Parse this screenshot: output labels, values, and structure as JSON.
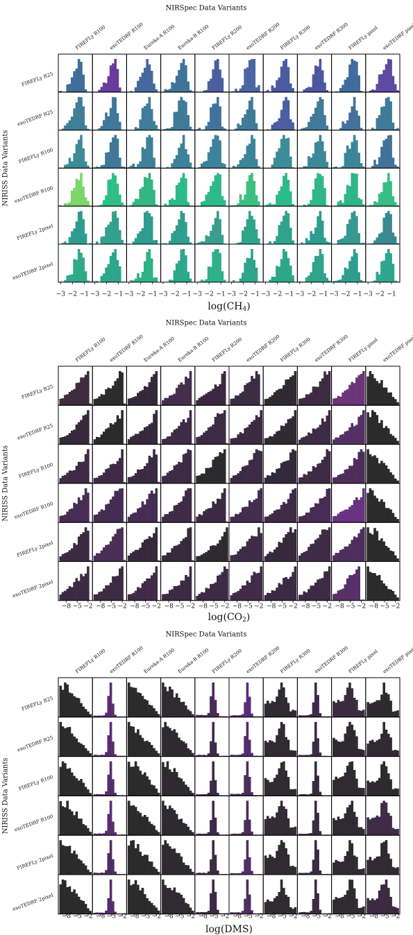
{
  "chart_data": [
    {
      "type": "histogram-grid",
      "title": "NIRSpec Data Variants",
      "ylabel": "NIRISS Data Variants",
      "xlabel_base": "log(CH",
      "xlabel_sub": "4",
      "xlabel_tail": ")",
      "columns": [
        "FIREFLy R100",
        "exoTEDRF R100",
        "Eureka-A R100",
        "Eureka-B R100",
        "FIREFLy R200",
        "exoTEDRF R200",
        "FIREFLy R300",
        "exoTEDRF R300",
        "FIREFLy pixel",
        "exoTEDRF pixel"
      ],
      "rows": [
        "FIREFLy R25",
        "exoTEDRF R25",
        "FIREFLy R100",
        "exoTEDRF R100",
        "FIREFLy 2pixel",
        "exoTEDRF 2pixel"
      ],
      "xlim": [
        -3.2,
        -0.3
      ],
      "xticks": [
        -3,
        -2,
        -1
      ],
      "xtick_labels": [
        "−3",
        "−2",
        "−1"
      ],
      "profile": "peaked",
      "param": {
        "peak": [
          -1.3,
          -1.05
        ],
        "left_width": [
          0.45,
          0.75
        ],
        "right_width": [
          0.18,
          0.32
        ]
      },
      "row_colors": [
        [
          "#3f6f98",
          "#6a3aa0",
          "#46689f",
          "#40739a",
          "#4a5fa0",
          "#4b66a2",
          "#4a5ba1",
          "#4d56a0",
          "#406b9d",
          "#5d4aa1"
        ],
        [
          "#3f7f98",
          "#3f7898",
          "#3f7d99",
          "#3f7a98",
          "#42729b",
          "#3f7b98",
          "#4a5ea0",
          "#3f7a98",
          "#43719b",
          "#3f7a99"
        ],
        [
          "#3c8c98",
          "#3f7898",
          "#3d8198",
          "#3d8298",
          "#3d8298",
          "#3c8598",
          "#3c8c98",
          "#3c8898",
          "#3c8598",
          "#42729a"
        ],
        [
          "#7ad76a",
          "#2dbf87",
          "#33b684",
          "#2dba89",
          "#2dba89",
          "#3cc080",
          "#2dba89",
          "#30b789",
          "#2eb58a",
          "#37bd86"
        ],
        [
          "#2f9d8e",
          "#35a08c",
          "#2f9c8f",
          "#2e9e8d",
          "#3a9c8d",
          "#2ea58b",
          "#2fa38c",
          "#2c9d8e",
          "#35998f",
          "#3a8990"
        ],
        [
          "#2ea98a",
          "#2da68a",
          "#2fb287",
          "#2ca88a",
          "#2fb088",
          "#2ea58b",
          "#2da68a",
          "#2ea489",
          "#2d9d8e",
          "#2fa68b"
        ]
      ]
    },
    {
      "type": "histogram-grid",
      "title": "NIRSpec Data Variants",
      "ylabel": "NIRISS Data Variants",
      "xlabel_base": "log(CO",
      "xlabel_sub": "2",
      "xlabel_tail": ")",
      "columns": [
        "FIREFLy R100",
        "exoTEDRF R100",
        "Eureka-A R100",
        "Eureka-B R100",
        "FIREFLy R200",
        "exoTEDRF R200",
        "FIREFLy R300",
        "exoTEDRF R300",
        "FIREFLy pixel",
        "exoTEDRF pixel"
      ],
      "rows": [
        "FIREFLy R25",
        "exoTEDRF R25",
        "FIREFLy R100",
        "exoTEDRF R100",
        "FIREFLy 2pixel",
        "exoTEDRF 2pixel"
      ],
      "xlim": [
        -10.2,
        -0.8
      ],
      "xticks": [
        -8,
        -5,
        -2
      ],
      "xtick_labels": [
        "−8",
        "−5",
        "−2"
      ],
      "profile": "ramp",
      "param": {
        "peak": [
          -3.2,
          -1.8
        ]
      },
      "column_profiles": {
        "9": "decay"
      },
      "row_colors": [
        [
          "#3d2b3e",
          "#2d2b2e",
          "#33293a",
          "#452d4c",
          "#3b2840",
          "#3a2c42",
          "#2e2a31",
          "#3c2b42",
          "#6b3479",
          "#2b2b2b"
        ],
        [
          "#35293a",
          "#2b2b2d",
          "#36293c",
          "#3e2b45",
          "#3c2b43",
          "#3c2a43",
          "#2f2a31",
          "#3e2b45",
          "#552f66",
          "#2b2b2b"
        ],
        [
          "#3d2a45",
          "#3f2b47",
          "#3a2b43",
          "#3c2b44",
          "#2b2a2d",
          "#3d2a45",
          "#33293a",
          "#3d2a45",
          "#4e2d5b",
          "#2b2b2b"
        ],
        [
          "#472c55",
          "#452c52",
          "#472c54",
          "#3e2b47",
          "#3a2a42",
          "#432c4e",
          "#3f2b47",
          "#472c55",
          "#6a3282",
          "#2b2b2b"
        ],
        [
          "#3b2a41",
          "#4a2e57",
          "#35293a",
          "#362a3b",
          "#2e2a31",
          "#3e2b45",
          "#35293a",
          "#3e2b45",
          "#4e2e5c",
          "#2b2b2b"
        ],
        [
          "#3b2a42",
          "#3d2b44",
          "#412b48",
          "#3d2b44",
          "#3d2b44",
          "#412b48",
          "#3a2b42",
          "#3d2b45",
          "#57306a",
          "#2b2b2b"
        ]
      ]
    },
    {
      "type": "histogram-grid",
      "title": "NIRSpec Data Variants",
      "ylabel": "NIRISS Data Variants",
      "xlabel_base": "log(DMS)",
      "xlabel_sub": "",
      "xlabel_tail": "",
      "columns": [
        "FIREFLy R100",
        "exoTEDRF R100",
        "Eureka-A R100",
        "Eureka-B R100",
        "FIREFLy R200",
        "exoTEDRF R200",
        "FIREFLy R300",
        "exoTEDRF R300",
        "FIREFLy pixel",
        "exoTEDRF pixel"
      ],
      "rows": [
        "FIREFLy R25",
        "exoTEDRF R25",
        "FIREFLy R100",
        "exoTEDRF R100",
        "FIREFLy 2pixel",
        "exoTEDRF 2pixel"
      ],
      "xlim": [
        -10.2,
        -0.8
      ],
      "xticks": [
        -8,
        -5,
        -2
      ],
      "xtick_labels": [
        "−8",
        "−5",
        "−2"
      ],
      "profile": "dms",
      "column_profiles": {
        "0": "decay",
        "1": "spike",
        "2": "decay",
        "3": "decay",
        "4": "spike",
        "5": "spike",
        "6": "plateau",
        "7": "spike",
        "8": "plateau",
        "9": "plateau"
      },
      "param": {
        "peak": [
          -5.3,
          -4.6
        ]
      },
      "row_colors": [
        [
          "#2b2b2b",
          "#5a2d72",
          "#2b2b2b",
          "#2f2b31",
          "#4a2c58",
          "#5b2b7c",
          "#2f2b32",
          "#40294b",
          "#3b2b3f",
          "#2d2b2e"
        ],
        [
          "#2b2b2b",
          "#592c70",
          "#2b2b2b",
          "#2d2b2e",
          "#3f2b48",
          "#562c6e",
          "#2f2b31",
          "#3c2b45",
          "#2f2a31",
          "#2f2b31"
        ],
        [
          "#2b2b2b",
          "#552c6a",
          "#2b2b2b",
          "#2d2b2e",
          "#3b2a43",
          "#4d2c5e",
          "#2f2b31",
          "#382a3f",
          "#2f2b31",
          "#2d2b2e"
        ],
        [
          "#2b2b2b",
          "#5a2d72",
          "#2b2b2b",
          "#2d2b2e",
          "#3d2b45",
          "#4b2c5b",
          "#332b36",
          "#3a2a43",
          "#2f2b32",
          "#402c48"
        ],
        [
          "#2b2b2b",
          "#4e2c60",
          "#2b2b2b",
          "#2d2b2e",
          "#3a2a42",
          "#522c66",
          "#2f2b31",
          "#3a2a42",
          "#2f2b31",
          "#2f2b31"
        ],
        [
          "#2b2b2b",
          "#562c6c",
          "#2b2b2b",
          "#2f2b31",
          "#3a2a42",
          "#502c63",
          "#2f2b31",
          "#3d2b45",
          "#2f2b31",
          "#3b2a42"
        ]
      ]
    }
  ]
}
